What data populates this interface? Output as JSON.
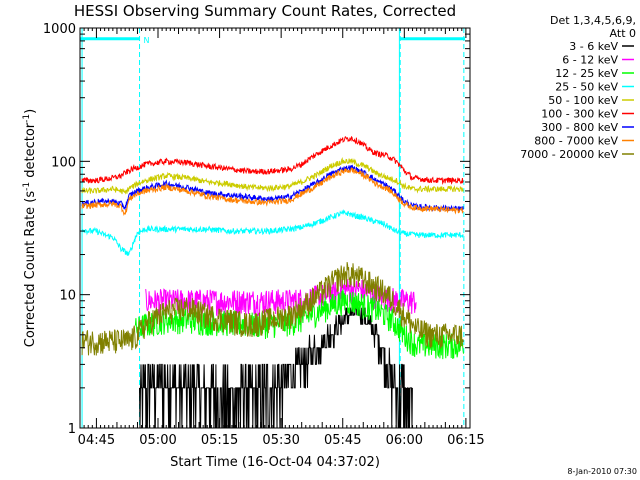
{
  "chart_data": {
    "type": "line",
    "title": "HESSI Observing Summary Count Rates, Corrected",
    "xlabel": "Start Time (16-Oct-04 04:37:02)",
    "ylabel": "Corrected Count Rate (s",
    "ylabel_sup1": "-1",
    "ylabel_mid": " detector",
    "ylabel_sup2": "-1",
    "ylabel_end": ")",
    "y_scale": "log",
    "ylim": [
      1,
      1000
    ],
    "xlim_minutes": [
      4.0,
      99.0
    ],
    "x_ticks": [
      {
        "label": "04:45",
        "t": 8
      },
      {
        "label": "05:00",
        "t": 23
      },
      {
        "label": "05:15",
        "t": 38
      },
      {
        "label": "05:30",
        "t": 53
      },
      {
        "label": "05:45",
        "t": 68
      },
      {
        "label": "06:00",
        "t": 83
      },
      {
        "label": "06:15",
        "t": 98
      }
    ],
    "y_ticks": [
      {
        "label": "1",
        "v": 1
      },
      {
        "label": "10",
        "v": 10
      },
      {
        "label": "100",
        "v": 100
      },
      {
        "label": "1000",
        "v": 1000
      }
    ],
    "legend_header": [
      "Det 1,3,4,5,6,9,",
      "Att 0"
    ],
    "timestamp": "8-Jan-2010 07:30",
    "night_marker": "N",
    "segments": {
      "data_start": 4.5,
      "dash_lines": [
        18.5,
        82.0
      ],
      "solid_line": 81.8,
      "end_line": 97.5,
      "bars": [
        [
          4.0,
          18.5,
          830
        ],
        [
          82.0,
          97.8,
          830
        ]
      ]
    },
    "series": [
      {
        "name": "3 - 6 keV",
        "color": "#000000",
        "x": [
          18.5,
          20,
          25,
          30,
          35,
          40,
          45,
          48,
          50,
          52,
          55,
          58,
          62,
          66,
          68,
          70,
          72,
          74,
          76,
          78,
          79,
          80,
          81.5,
          82.5,
          84,
          85
        ],
        "y": [
          1.8,
          2,
          2.2,
          2,
          1.9,
          1.7,
          1.8,
          1.8,
          2,
          2.2,
          2.5,
          3,
          4,
          5.5,
          6.5,
          7,
          7.5,
          6.5,
          5,
          3.5,
          2.8,
          2.2,
          1.8,
          2,
          1.5,
          1.2
        ]
      },
      {
        "name": "6 - 12 keV",
        "color": "#ff00ff",
        "x": [
          20,
          25,
          30,
          35,
          40,
          45,
          50,
          55,
          58,
          61,
          64,
          67,
          68,
          70,
          72,
          74,
          76,
          78,
          80,
          82,
          84,
          86
        ],
        "y": [
          9,
          9,
          9,
          9,
          9,
          9,
          9,
          9,
          9.2,
          9.5,
          10,
          10.5,
          11,
          11,
          11,
          10.5,
          10,
          9.5,
          9.3,
          9,
          9,
          9
        ]
      },
      {
        "name": "12 - 25 keV",
        "color": "#00ff00",
        "x": [
          17.5,
          20,
          25,
          30,
          35,
          40,
          45,
          50,
          55,
          58,
          62,
          66,
          68,
          70,
          72,
          74,
          76,
          78,
          80,
          83,
          86,
          90,
          95,
          97.5
        ],
        "y": [
          5.5,
          6,
          6.5,
          6.5,
          6.3,
          6.2,
          6,
          6,
          6.2,
          6.5,
          7.5,
          8.5,
          9,
          9,
          8.7,
          8.2,
          7.8,
          7.2,
          6.5,
          5,
          4.2,
          4.2,
          4.2,
          4.2
        ]
      },
      {
        "name": "25 - 50 keV",
        "color": "#00ffff",
        "x": [
          4.5,
          6,
          8,
          10,
          12,
          14,
          16,
          18,
          20,
          25,
          30,
          35,
          40,
          45,
          50,
          55,
          58,
          62,
          65,
          67,
          69,
          71,
          73,
          75,
          78,
          80,
          82,
          86,
          90,
          95,
          97.5
        ],
        "y": [
          31,
          30,
          30,
          28,
          27,
          22,
          20,
          29,
          31,
          31,
          31,
          31,
          30,
          30,
          30,
          31,
          32,
          35,
          38,
          40,
          41,
          39,
          38,
          36,
          34,
          31,
          29,
          28,
          28,
          28,
          28
        ]
      },
      {
        "name": "50 - 100 keV",
        "color": "#cccc00",
        "x": [
          4.5,
          8,
          12,
          14,
          15,
          16,
          17,
          18,
          20,
          25,
          30,
          35,
          40,
          45,
          50,
          55,
          58,
          62,
          65,
          68,
          70,
          72,
          74,
          76,
          79,
          81,
          83,
          85,
          90,
          95,
          97.5
        ],
        "y": [
          60,
          60,
          62,
          60,
          58,
          63,
          65,
          68,
          72,
          78,
          75,
          70,
          68,
          64,
          63,
          65,
          70,
          80,
          92,
          100,
          100,
          95,
          90,
          82,
          75,
          72,
          65,
          62,
          62,
          62,
          62
        ]
      },
      {
        "name": "100 - 300 keV",
        "color": "#ff0000",
        "x": [
          4.5,
          8,
          12,
          14,
          15,
          16,
          17,
          18,
          20,
          25,
          30,
          35,
          40,
          45,
          50,
          55,
          58,
          62,
          65,
          68,
          70,
          72,
          74,
          76,
          79,
          81,
          83,
          85,
          90,
          95,
          97.5
        ],
        "y": [
          72,
          72,
          75,
          78,
          82,
          85,
          88,
          90,
          95,
          100,
          98,
          92,
          88,
          84,
          84,
          87,
          95,
          115,
          130,
          145,
          150,
          140,
          125,
          115,
          110,
          100,
          85,
          75,
          72,
          72,
          72
        ]
      },
      {
        "name": "300 - 800 keV",
        "color": "#0000ff",
        "x": [
          4.5,
          8,
          12,
          14,
          15,
          16,
          17,
          18,
          20,
          25,
          30,
          35,
          40,
          45,
          50,
          55,
          58,
          62,
          65,
          68,
          70,
          72,
          74,
          76,
          79,
          81,
          83,
          85,
          90,
          95,
          97.5
        ],
        "y": [
          48,
          50,
          50,
          48,
          45,
          55,
          58,
          60,
          63,
          68,
          64,
          58,
          56,
          54,
          52,
          54,
          60,
          70,
          80,
          88,
          90,
          85,
          80,
          72,
          65,
          58,
          50,
          46,
          45,
          44,
          44
        ]
      },
      {
        "name": "800 - 7000 keV",
        "color": "#ff8000",
        "x": [
          4.5,
          8,
          12,
          14,
          15,
          16,
          17,
          18,
          20,
          25,
          30,
          35,
          40,
          45,
          50,
          55,
          58,
          62,
          65,
          68,
          70,
          72,
          74,
          76,
          79,
          81,
          83,
          85,
          90,
          95,
          97.5
        ],
        "y": [
          46,
          47,
          48,
          46,
          40,
          52,
          55,
          57,
          60,
          64,
          60,
          55,
          52,
          50,
          49,
          51,
          57,
          66,
          76,
          84,
          86,
          82,
          76,
          68,
          62,
          55,
          48,
          45,
          44,
          43,
          43
        ]
      },
      {
        "name": "7000 - 20000 keV",
        "color": "#808000",
        "x": [
          4.5,
          8,
          12,
          16,
          18,
          20,
          25,
          30,
          35,
          40,
          45,
          50,
          55,
          58,
          62,
          65,
          67,
          69,
          71,
          73,
          75,
          77,
          79,
          81,
          83,
          86,
          90,
          95,
          97.5
        ],
        "y": [
          4.5,
          4.5,
          4.5,
          4.5,
          5,
          6,
          7.5,
          8,
          7,
          6.5,
          6,
          6.5,
          7,
          8,
          10,
          12,
          13.5,
          14.5,
          14,
          13,
          12,
          11,
          10,
          8.5,
          7,
          5.5,
          5,
          5,
          5
        ]
      }
    ]
  }
}
